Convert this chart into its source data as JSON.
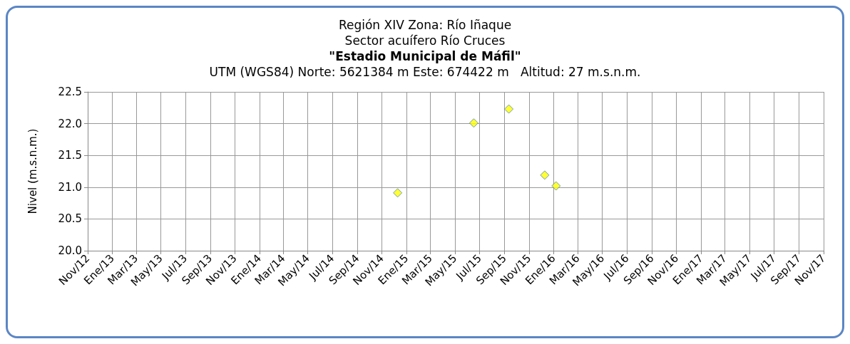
{
  "chart_data": {
    "type": "scatter",
    "title": "Región XIV Zona: Río Iñaque\nSector acuífero Río Cruces\n\"Estadio Municipal de Máfil\"",
    "subtitle": "UTM (WGS84) Norte: 5621384 m Este: 674422 m   Altitud: 27 m.s.n.m.",
    "ylabel": "Nivel (m.s.n.m.)",
    "x": [
      "2014-12-10",
      "2015-06-17",
      "2015-09-12",
      "2015-12-10",
      "2016-01-07"
    ],
    "series": [
      {
        "color": "#ffff00",
        "values": [
          20.91,
          22.01,
          22.23,
          21.19,
          21.02
        ]
      }
    ],
    "marker": "diamond",
    "grid": true,
    "xlim": [
      "2012-11",
      "2017-11"
    ],
    "xticks": [
      {
        "value": "2012-11",
        "label": "Nov/12"
      },
      {
        "value": "2013-01",
        "label": "Ene/13"
      },
      {
        "value": "2013-03",
        "label": "Mar/13"
      },
      {
        "value": "2013-05",
        "label": "May/13"
      },
      {
        "value": "2013-07",
        "label": "Jul/13"
      },
      {
        "value": "2013-09",
        "label": "Sep/13"
      },
      {
        "value": "2013-11",
        "label": "Nov/13"
      },
      {
        "value": "2014-01",
        "label": "Ene/14"
      },
      {
        "value": "2014-03",
        "label": "Mar/14"
      },
      {
        "value": "2014-05",
        "label": "May/14"
      },
      {
        "value": "2014-07",
        "label": "Jul/14"
      },
      {
        "value": "2014-09",
        "label": "Sep/14"
      },
      {
        "value": "2014-11",
        "label": "Nov/14"
      },
      {
        "value": "2015-01",
        "label": "Ene/15"
      },
      {
        "value": "2015-03",
        "label": "Mar/15"
      },
      {
        "value": "2015-05",
        "label": "May/15"
      },
      {
        "value": "2015-07",
        "label": "Jul/15"
      },
      {
        "value": "2015-09",
        "label": "Sep/15"
      },
      {
        "value": "2015-11",
        "label": "Nov/15"
      },
      {
        "value": "2016-01",
        "label": "Ene/16"
      },
      {
        "value": "2016-03",
        "label": "Mar/16"
      },
      {
        "value": "2016-05",
        "label": "May/16"
      },
      {
        "value": "2016-07",
        "label": "Jul/16"
      },
      {
        "value": "2016-09",
        "label": "Sep/16"
      },
      {
        "value": "2016-11",
        "label": "Nov/16"
      },
      {
        "value": "2017-01",
        "label": "Ene/17"
      },
      {
        "value": "2017-03",
        "label": "Mar/17"
      },
      {
        "value": "2017-05",
        "label": "May/17"
      },
      {
        "value": "2017-07",
        "label": "Jul/17"
      },
      {
        "value": "2017-09",
        "label": "Sep/17"
      },
      {
        "value": "2017-11",
        "label": "Nov/17"
      }
    ],
    "ylim": [
      20.0,
      22.5
    ],
    "yticks": [
      {
        "value": 20,
        "label": "20.0"
      },
      {
        "value": 20.5,
        "label": "20.5"
      },
      {
        "value": 21,
        "label": "21.0"
      },
      {
        "value": 21.5,
        "label": "21.5"
      },
      {
        "value": 22,
        "label": "22.0"
      },
      {
        "value": 22.5,
        "label": "22.5"
      }
    ]
  }
}
